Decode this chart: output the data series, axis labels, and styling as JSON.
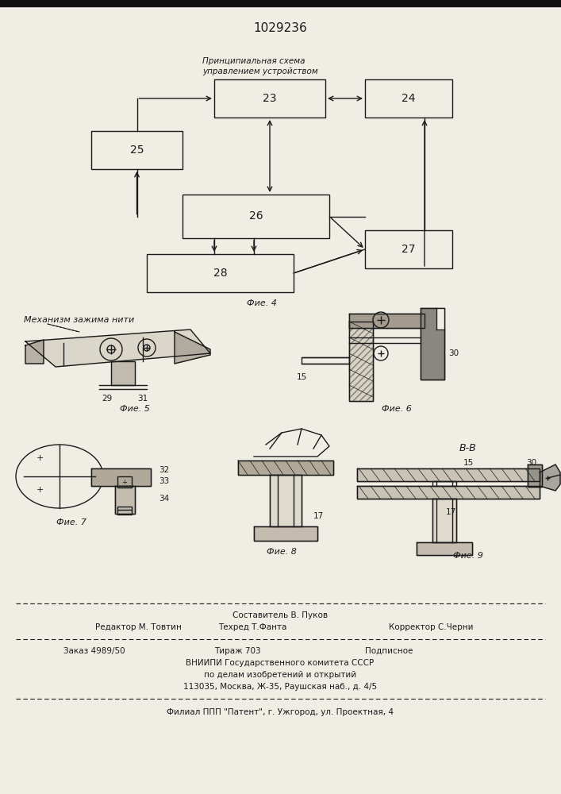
{
  "patent_number": "1029236",
  "bg_color": "#f0ede5",
  "line_color": "#1a1a1a",
  "title_italic": "Принципиальная схема\nуправлением устройством",
  "fig4_label": "Фие. 4",
  "fig5_label": "Фие. 5",
  "fig6_label": "Фие. 6",
  "fig7_label": "Фие. 7",
  "fig8_label": "Фие. 8",
  "fig9_label": "Фие. 9",
  "mechanism_label": "Механизм зажима нити",
  "bb_label": "В-В",
  "footer_line1": "Составитель В. Пуков",
  "footer_line2a": "Редактор М. Товтин",
  "footer_line2b": "Техред Т.Фанта",
  "footer_line2c": "Корректор С.Черни",
  "footer_line3a": "Заказ 4989/50",
  "footer_line3b": "Тираж 703",
  "footer_line3c": "Подписное",
  "footer_line4": "ВНИИПИ Государственного комитета СССР",
  "footer_line5": "по делам изобретений и открытий",
  "footer_line6": "113035, Москва, Ж-35, Раушская наб., д. 4/5",
  "footer_line7": "Филиал ППП \"Патент\", г. Ужгород, ул. Проектная, 4"
}
